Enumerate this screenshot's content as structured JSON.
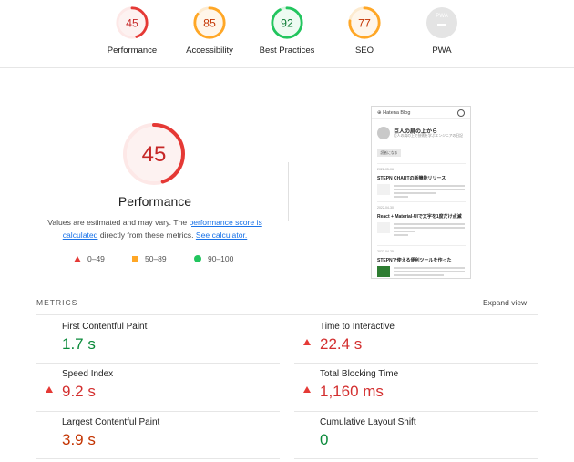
{
  "gauges": [
    {
      "id": "performance",
      "score": "45",
      "label": "Performance",
      "fraction": 0.45,
      "color": "#e53935",
      "track": "#fde8e7",
      "fill": "#fdf2f1",
      "text": "#c62828"
    },
    {
      "id": "accessibility",
      "score": "85",
      "label": "Accessibility",
      "fraction": 0.85,
      "color": "#ffa726",
      "track": "#fdebd0",
      "fill": "#fff6ea",
      "text": "#c33300"
    },
    {
      "id": "best-practices",
      "score": "92",
      "label": "Best Practices",
      "fraction": 0.92,
      "color": "#22c55e",
      "track": "#d6f5df",
      "fill": "#eefbf2",
      "text": "#0a7a32"
    },
    {
      "id": "seo",
      "score": "77",
      "label": "SEO",
      "fraction": 0.77,
      "color": "#ffa726",
      "track": "#fdebd0",
      "fill": "#fff6ea",
      "text": "#c33300"
    }
  ],
  "pwa": {
    "label": "PWA",
    "badge": "PWA"
  },
  "main": {
    "score": "45",
    "fraction": 0.45,
    "title": "Performance",
    "desc_prefix": "Values are estimated and may vary. The ",
    "desc_link1": "performance score is calculated",
    "desc_middle": " directly from these metrics. ",
    "desc_link2": "See calculator."
  },
  "legend": {
    "red": "0–49",
    "orange": "50–89",
    "green": "90–100"
  },
  "phone": {
    "logo": "⊕ Hatena Blog",
    "blog_title": "巨人の肩の上から",
    "blog_sub": "巨人の肩の上で技術を学ぶエンジニアの日記",
    "button": "読者になる",
    "entries": [
      {
        "date": "2022-05-06",
        "title": "STEPN CHARTの新機能リリース"
      },
      {
        "date": "2022-04-30",
        "title": "React + Material-UIで文字を1度だけ点滅"
      },
      {
        "date": "2022-04-25",
        "title": "STEPNで使える便利ツールを作った"
      }
    ]
  },
  "metrics": {
    "title": "METRICS",
    "expand": "Expand view",
    "items": [
      {
        "label": "First Contentful Paint",
        "value": "1.7 s",
        "status": "green"
      },
      {
        "label": "Time to Interactive",
        "value": "22.4 s",
        "status": "red"
      },
      {
        "label": "Speed Index",
        "value": "9.2 s",
        "status": "red"
      },
      {
        "label": "Total Blocking Time",
        "value": "1,160 ms",
        "status": "red"
      },
      {
        "label": "Largest Contentful Paint",
        "value": "3.9 s",
        "status": "orange"
      },
      {
        "label": "Cumulative Layout Shift",
        "value": "0",
        "status": "green"
      }
    ]
  }
}
